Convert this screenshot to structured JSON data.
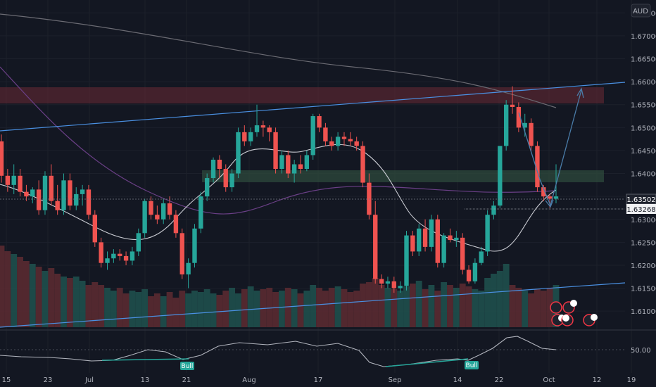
{
  "chart_data": {
    "type": "candlestick",
    "currency": "AUD",
    "y_ticks": [
      "1.67500",
      "1.67000",
      "1.66500",
      "1.66000",
      "1.65500",
      "1.65000",
      "1.64500",
      "1.64000",
      "1.63500",
      "1.63000",
      "1.62500",
      "1.62000",
      "1.61500",
      "1.61000"
    ],
    "ylim": [
      1.6065,
      1.6775
    ],
    "x_ticks": [
      "15",
      "23",
      "Jul",
      "13",
      "21",
      "Aug",
      "17",
      "Sep",
      "14",
      "22",
      "Oct",
      "12",
      "19"
    ],
    "current_price": "1.63502",
    "marked_price": "1.63268",
    "osc_level": "50.00",
    "bull_labels": [
      "Bull",
      "Bull"
    ],
    "calendar_badges": [
      "2",
      "3",
      "4",
      "2"
    ],
    "candles": [
      [
        1.647,
        1.6485,
        1.638,
        1.6395
      ],
      [
        1.6395,
        1.641,
        1.636,
        1.6375
      ],
      [
        1.6375,
        1.642,
        1.6355,
        1.6395
      ],
      [
        1.6395,
        1.641,
        1.635,
        1.636
      ],
      [
        1.636,
        1.6375,
        1.634,
        1.635
      ],
      [
        1.635,
        1.637,
        1.6335,
        1.6365
      ],
      [
        1.6365,
        1.6385,
        1.631,
        1.632
      ],
      [
        1.632,
        1.6405,
        1.631,
        1.6395
      ],
      [
        1.6395,
        1.642,
        1.633,
        1.634
      ],
      [
        1.634,
        1.6375,
        1.631,
        1.632
      ],
      [
        1.632,
        1.64,
        1.631,
        1.6385
      ],
      [
        1.6385,
        1.64,
        1.632,
        1.633
      ],
      [
        1.633,
        1.637,
        1.632,
        1.6355
      ],
      [
        1.6355,
        1.6375,
        1.633,
        1.6365
      ],
      [
        1.6365,
        1.6375,
        1.63,
        1.631
      ],
      [
        1.631,
        1.632,
        1.624,
        1.625
      ],
      [
        1.625,
        1.626,
        1.6195,
        1.6205
      ],
      [
        1.6205,
        1.623,
        1.619,
        1.6215
      ],
      [
        1.6215,
        1.6235,
        1.6205,
        1.6225
      ],
      [
        1.6225,
        1.6235,
        1.621,
        1.622
      ],
      [
        1.622,
        1.623,
        1.62,
        1.621
      ],
      [
        1.621,
        1.624,
        1.62,
        1.623
      ],
      [
        1.623,
        1.628,
        1.622,
        1.627
      ],
      [
        1.627,
        1.6345,
        1.626,
        1.634
      ],
      [
        1.634,
        1.635,
        1.63,
        1.631
      ],
      [
        1.631,
        1.633,
        1.629,
        1.63
      ],
      [
        1.63,
        1.6345,
        1.629,
        1.6335
      ],
      [
        1.6335,
        1.635,
        1.63,
        1.631
      ],
      [
        1.631,
        1.632,
        1.626,
        1.627
      ],
      [
        1.627,
        1.628,
        1.617,
        1.618
      ],
      [
        1.618,
        1.6215,
        1.615,
        1.6205
      ],
      [
        1.6205,
        1.629,
        1.6195,
        1.628
      ],
      [
        1.628,
        1.636,
        1.627,
        1.635
      ],
      [
        1.635,
        1.64,
        1.634,
        1.639
      ],
      [
        1.639,
        1.6435,
        1.638,
        1.643
      ],
      [
        1.643,
        1.644,
        1.639,
        1.641
      ],
      [
        1.641,
        1.642,
        1.636,
        1.637
      ],
      [
        1.637,
        1.641,
        1.636,
        1.64
      ],
      [
        1.64,
        1.65,
        1.639,
        1.649
      ],
      [
        1.649,
        1.6505,
        1.646,
        1.647
      ],
      [
        1.647,
        1.65,
        1.646,
        1.649
      ],
      [
        1.649,
        1.655,
        1.648,
        1.6505
      ],
      [
        1.6505,
        1.6515,
        1.648,
        1.65
      ],
      [
        1.65,
        1.6505,
        1.647,
        1.649
      ],
      [
        1.649,
        1.65,
        1.64,
        1.641
      ],
      [
        1.641,
        1.645,
        1.64,
        1.644
      ],
      [
        1.644,
        1.645,
        1.639,
        1.64
      ],
      [
        1.64,
        1.643,
        1.638,
        1.642
      ],
      [
        1.642,
        1.644,
        1.64,
        1.641
      ],
      [
        1.641,
        1.645,
        1.6405,
        1.644
      ],
      [
        1.644,
        1.653,
        1.643,
        1.6525
      ],
      [
        1.6525,
        1.653,
        1.649,
        1.65
      ],
      [
        1.65,
        1.651,
        1.646,
        1.647
      ],
      [
        1.647,
        1.648,
        1.645,
        1.646
      ],
      [
        1.646,
        1.649,
        1.645,
        1.648
      ],
      [
        1.648,
        1.649,
        1.646,
        1.6475
      ],
      [
        1.6475,
        1.649,
        1.646,
        1.647
      ],
      [
        1.647,
        1.648,
        1.645,
        1.646
      ],
      [
        1.646,
        1.647,
        1.637,
        1.638
      ],
      [
        1.638,
        1.64,
        1.63,
        1.631
      ],
      [
        1.631,
        1.634,
        1.616,
        1.617
      ],
      [
        1.617,
        1.618,
        1.615,
        1.616
      ],
      [
        1.616,
        1.6175,
        1.615,
        1.6165
      ],
      [
        1.6165,
        1.6175,
        1.614,
        1.615
      ],
      [
        1.615,
        1.6165,
        1.614,
        1.6155
      ],
      [
        1.6155,
        1.6275,
        1.6145,
        1.6265
      ],
      [
        1.6265,
        1.6275,
        1.622,
        1.623
      ],
      [
        1.623,
        1.629,
        1.622,
        1.628
      ],
      [
        1.628,
        1.63,
        1.623,
        1.624
      ],
      [
        1.624,
        1.631,
        1.623,
        1.63
      ],
      [
        1.63,
        1.631,
        1.6195,
        1.6205
      ],
      [
        1.6205,
        1.627,
        1.6195,
        1.6265
      ],
      [
        1.6265,
        1.628,
        1.625,
        1.6255
      ],
      [
        1.6255,
        1.6275,
        1.624,
        1.626
      ],
      [
        1.626,
        1.627,
        1.618,
        1.619
      ],
      [
        1.619,
        1.62,
        1.616,
        1.6165
      ],
      [
        1.6165,
        1.6215,
        1.616,
        1.6205
      ],
      [
        1.6205,
        1.624,
        1.62,
        1.623
      ],
      [
        1.623,
        1.632,
        1.622,
        1.631
      ],
      [
        1.631,
        1.634,
        1.63,
        1.633
      ],
      [
        1.633,
        1.646,
        1.6325,
        1.646
      ],
      [
        1.646,
        1.656,
        1.645,
        1.655
      ],
      [
        1.655,
        1.659,
        1.653,
        1.6545
      ],
      [
        1.6545,
        1.6555,
        1.649,
        1.65
      ],
      [
        1.65,
        1.653,
        1.648,
        1.651
      ],
      [
        1.651,
        1.652,
        1.645,
        1.646
      ],
      [
        1.646,
        1.647,
        1.636,
        1.637
      ],
      [
        1.637,
        1.6375,
        1.634,
        1.635
      ],
      [
        1.635,
        1.6355,
        1.6325,
        1.6345
      ],
      [
        1.6345,
        1.642,
        1.6335,
        1.635
      ]
    ],
    "volumes": [
      58,
      54,
      52,
      50,
      47,
      45,
      43,
      40,
      42,
      38,
      36,
      35,
      36,
      33,
      30,
      32,
      30,
      28,
      26,
      28,
      24,
      26,
      25,
      27,
      22,
      24,
      22,
      25,
      21,
      26,
      24,
      26,
      25,
      27,
      24,
      23,
      26,
      28,
      24,
      27,
      29,
      26,
      27,
      28,
      25,
      26,
      28,
      27,
      24,
      26,
      30,
      28,
      26,
      28,
      29,
      27,
      25,
      26,
      31,
      32,
      35,
      30,
      28,
      27,
      26,
      29,
      31,
      33,
      27,
      30,
      26,
      32,
      30,
      28,
      31,
      29,
      27,
      26,
      35,
      38,
      40,
      45,
      30,
      28,
      26,
      24,
      27,
      26,
      28,
      30
    ]
  }
}
